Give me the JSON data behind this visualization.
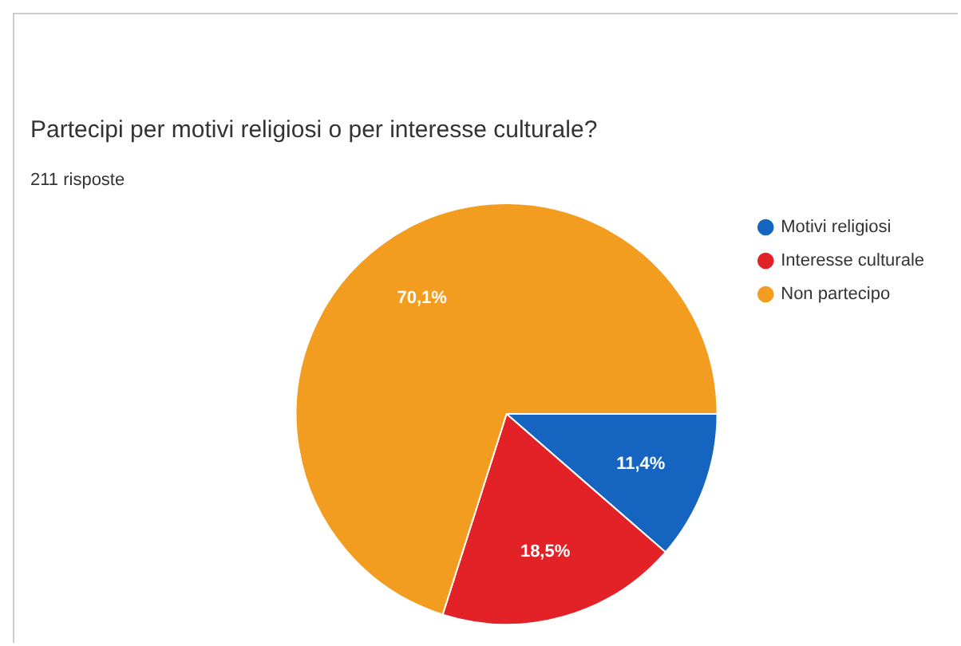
{
  "chart_data": {
    "type": "pie",
    "title": "Partecipi per motivi religiosi o per interesse culturale?",
    "subtitle": "211 risposte",
    "categories": [
      "Motivi religiosi",
      "Interesse culturale",
      "Non partecipo"
    ],
    "values": [
      11.4,
      18.5,
      70.1
    ],
    "colors": [
      "#1565c0",
      "#e32227",
      "#f29d1f"
    ],
    "value_labels": [
      "11,4%",
      "18,5%",
      "70,1%"
    ],
    "legend": "top right"
  }
}
